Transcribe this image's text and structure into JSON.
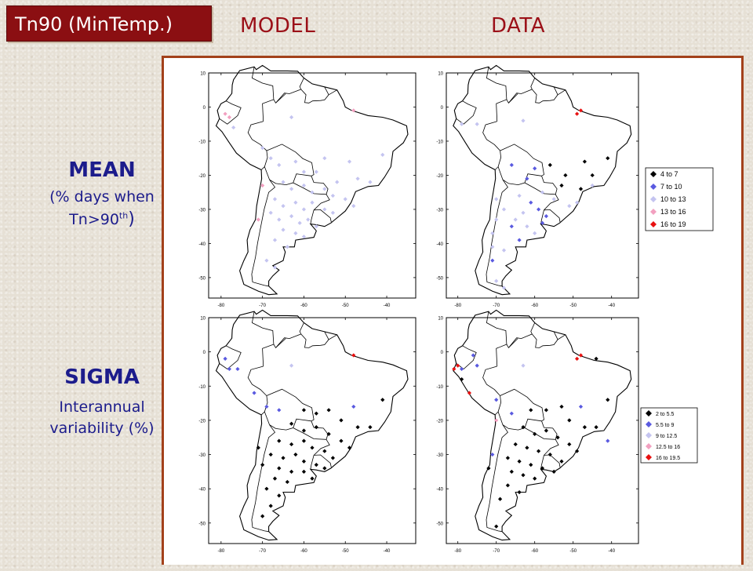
{
  "header": {
    "title": "Tn90 (MinTemp.)",
    "model_label": "MODEL",
    "data_label": "DATA"
  },
  "rows": {
    "mean": {
      "title": "MEAN",
      "sub1": "(% days when",
      "sub2_base": "Tn>90",
      "sub2_sup": "th",
      "sub2_end": ")"
    },
    "sigma": {
      "title": "SIGMA",
      "sub1": "Interannual",
      "sub2": "variability (%)"
    }
  },
  "colors": {
    "title_bg": "#8b0f12",
    "heading": "#9b1018",
    "label": "#1c1c8c",
    "frame": "#a3411b",
    "bins": [
      "#000000",
      "#5a5ae0",
      "#c4c4f0",
      "#f2a0c0",
      "#e81010"
    ]
  },
  "chart_data": [
    {
      "type": "scatter",
      "title": "MODEL - MEAN",
      "xlim": [
        -83,
        -33
      ],
      "ylim": [
        -56,
        10
      ],
      "xticks": [
        -80,
        -70,
        -60,
        -50,
        -40
      ],
      "yticks": [
        10,
        0,
        -10,
        -20,
        -30,
        -40,
        -50
      ],
      "grid": false,
      "points": [
        {
          "lon": -79,
          "lat": -2,
          "bin": 3
        },
        {
          "lon": -78,
          "lat": -3,
          "bin": 3
        },
        {
          "lon": -77,
          "lat": -6,
          "bin": 2
        },
        {
          "lon": -63,
          "lat": -3,
          "bin": 2
        },
        {
          "lon": -48,
          "lat": -1,
          "bin": 3
        },
        {
          "lon": -70,
          "lat": -12,
          "bin": 2
        },
        {
          "lon": -68,
          "lat": -15,
          "bin": 2
        },
        {
          "lon": -66,
          "lat": -17,
          "bin": 2
        },
        {
          "lon": -62,
          "lat": -16,
          "bin": 2
        },
        {
          "lon": -60,
          "lat": -19,
          "bin": 2
        },
        {
          "lon": -57,
          "lat": -19,
          "bin": 2
        },
        {
          "lon": -55,
          "lat": -15,
          "bin": 2
        },
        {
          "lon": -49,
          "lat": -16,
          "bin": 2
        },
        {
          "lon": -41,
          "lat": -14,
          "bin": 2
        },
        {
          "lon": -52,
          "lat": -22,
          "bin": 2
        },
        {
          "lon": -47,
          "lat": -21,
          "bin": 2
        },
        {
          "lon": -44,
          "lat": -22,
          "bin": 2
        },
        {
          "lon": -65,
          "lat": -22,
          "bin": 2
        },
        {
          "lon": -63,
          "lat": -24,
          "bin": 2
        },
        {
          "lon": -60,
          "lat": -23,
          "bin": 2
        },
        {
          "lon": -58,
          "lat": -25,
          "bin": 2
        },
        {
          "lon": -55,
          "lat": -24,
          "bin": 2
        },
        {
          "lon": -53,
          "lat": -26,
          "bin": 2
        },
        {
          "lon": -50,
          "lat": -27,
          "bin": 2
        },
        {
          "lon": -48,
          "lat": -29,
          "bin": 2
        },
        {
          "lon": -67,
          "lat": -27,
          "bin": 2
        },
        {
          "lon": -65,
          "lat": -29,
          "bin": 2
        },
        {
          "lon": -62,
          "lat": -28,
          "bin": 2
        },
        {
          "lon": -60,
          "lat": -30,
          "bin": 2
        },
        {
          "lon": -58,
          "lat": -28,
          "bin": 2
        },
        {
          "lon": -55,
          "lat": -30,
          "bin": 2
        },
        {
          "lon": -53,
          "lat": -31,
          "bin": 2
        },
        {
          "lon": -68,
          "lat": -31,
          "bin": 2
        },
        {
          "lon": -66,
          "lat": -33,
          "bin": 2
        },
        {
          "lon": -63,
          "lat": -32,
          "bin": 2
        },
        {
          "lon": -61,
          "lat": -34,
          "bin": 2
        },
        {
          "lon": -59,
          "lat": -33,
          "bin": 2
        },
        {
          "lon": -57,
          "lat": -35,
          "bin": 2
        },
        {
          "lon": -65,
          "lat": -36,
          "bin": 2
        },
        {
          "lon": -62,
          "lat": -37,
          "bin": 2
        },
        {
          "lon": -60,
          "lat": -38,
          "bin": 2
        },
        {
          "lon": -67,
          "lat": -39,
          "bin": 2
        },
        {
          "lon": -64,
          "lat": -41,
          "bin": 2
        },
        {
          "lon": -69,
          "lat": -45,
          "bin": 2
        },
        {
          "lon": -67,
          "lat": -47,
          "bin": 2
        },
        {
          "lon": -71,
          "lat": -33,
          "bin": 3
        },
        {
          "lon": -70,
          "lat": -23,
          "bin": 3
        }
      ]
    },
    {
      "type": "scatter",
      "title": "DATA - MEAN",
      "xlim": [
        -83,
        -33
      ],
      "ylim": [
        -56,
        10
      ],
      "xticks": [
        -80,
        -70,
        -60,
        -50,
        -40
      ],
      "yticks": [
        10,
        0,
        -10,
        -20,
        -30,
        -40,
        -50
      ],
      "grid": false,
      "legend": {
        "placement": "right",
        "entries": [
          "4  to  7",
          "7  to  10",
          "10  to  13",
          "13  to  16",
          "16  to  19"
        ]
      },
      "points": [
        {
          "lon": -79,
          "lat": -5,
          "bin": 2
        },
        {
          "lon": -75,
          "lat": -5,
          "bin": 2
        },
        {
          "lon": -63,
          "lat": -4,
          "bin": 2
        },
        {
          "lon": -48,
          "lat": -1,
          "bin": 4
        },
        {
          "lon": -49,
          "lat": -2,
          "bin": 4
        },
        {
          "lon": -41,
          "lat": -15,
          "bin": 0
        },
        {
          "lon": -47,
          "lat": -16,
          "bin": 0
        },
        {
          "lon": -45,
          "lat": -20,
          "bin": 0
        },
        {
          "lon": -56,
          "lat": -17,
          "bin": 0
        },
        {
          "lon": -60,
          "lat": -18,
          "bin": 1
        },
        {
          "lon": -66,
          "lat": -17,
          "bin": 1
        },
        {
          "lon": -62,
          "lat": -21,
          "bin": 1
        },
        {
          "lon": -52,
          "lat": -20,
          "bin": 0
        },
        {
          "lon": -53,
          "lat": -23,
          "bin": 0
        },
        {
          "lon": -48,
          "lat": -24,
          "bin": 0
        },
        {
          "lon": -45,
          "lat": -23,
          "bin": 2
        },
        {
          "lon": -58,
          "lat": -25,
          "bin": 2
        },
        {
          "lon": -55,
          "lat": -27,
          "bin": 2
        },
        {
          "lon": -51,
          "lat": -29,
          "bin": 2
        },
        {
          "lon": -49,
          "lat": -28,
          "bin": 2
        },
        {
          "lon": -64,
          "lat": -26,
          "bin": 2
        },
        {
          "lon": -61,
          "lat": -28,
          "bin": 1
        },
        {
          "lon": -59,
          "lat": -30,
          "bin": 1
        },
        {
          "lon": -57,
          "lat": -32,
          "bin": 1
        },
        {
          "lon": -63,
          "lat": -31,
          "bin": 2
        },
        {
          "lon": -65,
          "lat": -33,
          "bin": 2
        },
        {
          "lon": -68,
          "lat": -30,
          "bin": 2
        },
        {
          "lon": -66,
          "lat": -35,
          "bin": 1
        },
        {
          "lon": -62,
          "lat": -35,
          "bin": 2
        },
        {
          "lon": -60,
          "lat": -37,
          "bin": 2
        },
        {
          "lon": -58,
          "lat": -34,
          "bin": 1
        },
        {
          "lon": -64,
          "lat": -39,
          "bin": 1
        },
        {
          "lon": -68,
          "lat": -42,
          "bin": 2
        },
        {
          "lon": -71,
          "lat": -41,
          "bin": 2
        },
        {
          "lon": -71,
          "lat": -45,
          "bin": 1
        },
        {
          "lon": -70,
          "lat": -51,
          "bin": 2
        },
        {
          "lon": -68,
          "lat": -53,
          "bin": 2
        },
        {
          "lon": -70,
          "lat": -27,
          "bin": 2
        },
        {
          "lon": -70,
          "lat": -33,
          "bin": 2
        },
        {
          "lon": -71,
          "lat": -37,
          "bin": 2
        }
      ]
    },
    {
      "type": "scatter",
      "title": "MODEL - SIGMA",
      "xlim": [
        -83,
        -33
      ],
      "ylim": [
        -56,
        10
      ],
      "xticks": [
        -80,
        -70,
        -60,
        -50,
        -40
      ],
      "yticks": [
        10,
        0,
        -10,
        -20,
        -30,
        -40,
        -50
      ],
      "grid": false,
      "points": [
        {
          "lon": -79,
          "lat": -2,
          "bin": 1
        },
        {
          "lon": -78,
          "lat": -5,
          "bin": 1
        },
        {
          "lon": -76,
          "lat": -5,
          "bin": 1
        },
        {
          "lon": -63,
          "lat": -4,
          "bin": 2
        },
        {
          "lon": -48,
          "lat": -1,
          "bin": 4
        },
        {
          "lon": -72,
          "lat": -12,
          "bin": 1
        },
        {
          "lon": -69,
          "lat": -16,
          "bin": 1
        },
        {
          "lon": -66,
          "lat": -17,
          "bin": 1
        },
        {
          "lon": -48,
          "lat": -16,
          "bin": 1
        },
        {
          "lon": -41,
          "lat": -14,
          "bin": 0
        },
        {
          "lon": -60,
          "lat": -17,
          "bin": 0
        },
        {
          "lon": -57,
          "lat": -18,
          "bin": 0
        },
        {
          "lon": -54,
          "lat": -17,
          "bin": 0
        },
        {
          "lon": -51,
          "lat": -20,
          "bin": 0
        },
        {
          "lon": -47,
          "lat": -22,
          "bin": 0
        },
        {
          "lon": -44,
          "lat": -22,
          "bin": 0
        },
        {
          "lon": -63,
          "lat": -21,
          "bin": 0
        },
        {
          "lon": -60,
          "lat": -23,
          "bin": 0
        },
        {
          "lon": -57,
          "lat": -22,
          "bin": 0
        },
        {
          "lon": -54,
          "lat": -24,
          "bin": 0
        },
        {
          "lon": -51,
          "lat": -26,
          "bin": 0
        },
        {
          "lon": -49,
          "lat": -28,
          "bin": 0
        },
        {
          "lon": -66,
          "lat": -26,
          "bin": 0
        },
        {
          "lon": -63,
          "lat": -27,
          "bin": 0
        },
        {
          "lon": -60,
          "lat": -26,
          "bin": 0
        },
        {
          "lon": -58,
          "lat": -28,
          "bin": 0
        },
        {
          "lon": -55,
          "lat": -29,
          "bin": 0
        },
        {
          "lon": -53,
          "lat": -31,
          "bin": 0
        },
        {
          "lon": -68,
          "lat": -30,
          "bin": 0
        },
        {
          "lon": -65,
          "lat": -31,
          "bin": 0
        },
        {
          "lon": -62,
          "lat": -30,
          "bin": 0
        },
        {
          "lon": -60,
          "lat": -32,
          "bin": 0
        },
        {
          "lon": -57,
          "lat": -33,
          "bin": 0
        },
        {
          "lon": -55,
          "lat": -34,
          "bin": 0
        },
        {
          "lon": -66,
          "lat": -34,
          "bin": 0
        },
        {
          "lon": -63,
          "lat": -35,
          "bin": 0
        },
        {
          "lon": -60,
          "lat": -35,
          "bin": 0
        },
        {
          "lon": -58,
          "lat": -37,
          "bin": 0
        },
        {
          "lon": -67,
          "lat": -37,
          "bin": 0
        },
        {
          "lon": -64,
          "lat": -38,
          "bin": 0
        },
        {
          "lon": -69,
          "lat": -40,
          "bin": 0
        },
        {
          "lon": -66,
          "lat": -42,
          "bin": 0
        },
        {
          "lon": -68,
          "lat": -45,
          "bin": 0
        },
        {
          "lon": -70,
          "lat": -48,
          "bin": 0
        },
        {
          "lon": -70,
          "lat": -33,
          "bin": 0
        },
        {
          "lon": -71,
          "lat": -28,
          "bin": 0
        }
      ]
    },
    {
      "type": "scatter",
      "title": "DATA - SIGMA",
      "xlim": [
        -83,
        -33
      ],
      "ylim": [
        -56,
        10
      ],
      "xticks": [
        -80,
        -70,
        -60,
        -50,
        -40
      ],
      "yticks": [
        10,
        0,
        -10,
        -20,
        -30,
        -40,
        -50
      ],
      "grid": false,
      "legend": {
        "placement": "right",
        "entries": [
          "2  to  5.5",
          "5.5  to  9",
          "9  to  12.5",
          "12.5  to  16",
          "16  to  19.5"
        ]
      },
      "points": [
        {
          "lon": -80,
          "lat": -4,
          "bin": 4
        },
        {
          "lon": -81,
          "lat": -5,
          "bin": 4
        },
        {
          "lon": -79,
          "lat": -5,
          "bin": 1
        },
        {
          "lon": -76,
          "lat": -1,
          "bin": 1
        },
        {
          "lon": -75,
          "lat": -4,
          "bin": 1
        },
        {
          "lon": -63,
          "lat": -4,
          "bin": 2
        },
        {
          "lon": -48,
          "lat": -1,
          "bin": 4
        },
        {
          "lon": -49,
          "lat": -2,
          "bin": 4
        },
        {
          "lon": -44,
          "lat": -2,
          "bin": 0
        },
        {
          "lon": -79,
          "lat": -8,
          "bin": 0
        },
        {
          "lon": -77,
          "lat": -12,
          "bin": 4
        },
        {
          "lon": -70,
          "lat": -14,
          "bin": 1
        },
        {
          "lon": -66,
          "lat": -18,
          "bin": 1
        },
        {
          "lon": -61,
          "lat": -17,
          "bin": 0
        },
        {
          "lon": -57,
          "lat": -17,
          "bin": 0
        },
        {
          "lon": -53,
          "lat": -16,
          "bin": 0
        },
        {
          "lon": -48,
          "lat": -16,
          "bin": 1
        },
        {
          "lon": -41,
          "lat": -14,
          "bin": 0
        },
        {
          "lon": -51,
          "lat": -20,
          "bin": 0
        },
        {
          "lon": -47,
          "lat": -22,
          "bin": 0
        },
        {
          "lon": -44,
          "lat": -22,
          "bin": 0
        },
        {
          "lon": -41,
          "lat": -26,
          "bin": 1
        },
        {
          "lon": -63,
          "lat": -22,
          "bin": 0
        },
        {
          "lon": -60,
          "lat": -24,
          "bin": 0
        },
        {
          "lon": -57,
          "lat": -23,
          "bin": 0
        },
        {
          "lon": -54,
          "lat": -25,
          "bin": 0
        },
        {
          "lon": -51,
          "lat": -27,
          "bin": 0
        },
        {
          "lon": -49,
          "lat": -29,
          "bin": 0
        },
        {
          "lon": -65,
          "lat": -27,
          "bin": 0
        },
        {
          "lon": -62,
          "lat": -28,
          "bin": 0
        },
        {
          "lon": -59,
          "lat": -29,
          "bin": 0
        },
        {
          "lon": -56,
          "lat": -30,
          "bin": 0
        },
        {
          "lon": -53,
          "lat": -32,
          "bin": 0
        },
        {
          "lon": -67,
          "lat": -31,
          "bin": 0
        },
        {
          "lon": -64,
          "lat": -32,
          "bin": 0
        },
        {
          "lon": -61,
          "lat": -33,
          "bin": 0
        },
        {
          "lon": -58,
          "lat": -34,
          "bin": 0
        },
        {
          "lon": -55,
          "lat": -35,
          "bin": 0
        },
        {
          "lon": -66,
          "lat": -35,
          "bin": 0
        },
        {
          "lon": -63,
          "lat": -36,
          "bin": 0
        },
        {
          "lon": -60,
          "lat": -37,
          "bin": 0
        },
        {
          "lon": -67,
          "lat": -39,
          "bin": 0
        },
        {
          "lon": -64,
          "lat": -41,
          "bin": 0
        },
        {
          "lon": -69,
          "lat": -43,
          "bin": 0
        },
        {
          "lon": -70,
          "lat": -20,
          "bin": 3
        },
        {
          "lon": -71,
          "lat": -30,
          "bin": 1
        },
        {
          "lon": -72,
          "lat": -34,
          "bin": 0
        },
        {
          "lon": -70,
          "lat": -51,
          "bin": 0
        }
      ]
    }
  ]
}
